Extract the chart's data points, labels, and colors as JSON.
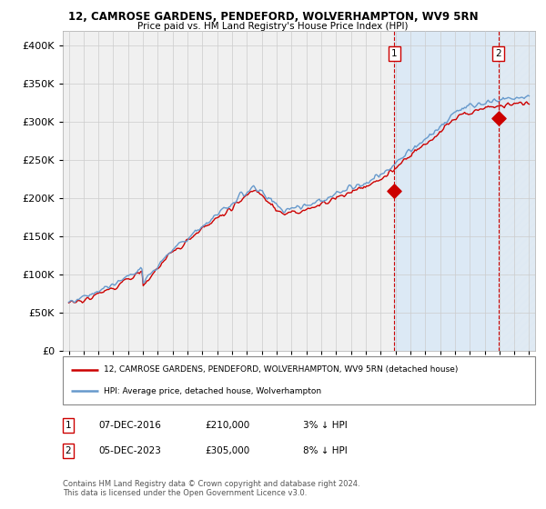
{
  "title1": "12, CAMROSE GARDENS, PENDEFORD, WOLVERHAMPTON, WV9 5RN",
  "title2": "Price paid vs. HM Land Registry's House Price Index (HPI)",
  "ytick_vals": [
    0,
    50000,
    100000,
    150000,
    200000,
    250000,
    300000,
    350000,
    400000
  ],
  "ylim": [
    0,
    420000
  ],
  "sale1_date": "07-DEC-2016",
  "sale1_price": 210000,
  "sale1_pct": "3%",
  "sale2_date": "05-DEC-2023",
  "sale2_price": 305000,
  "sale2_pct": "8%",
  "legend_label1": "12, CAMROSE GARDENS, PENDEFORD, WOLVERHAMPTON, WV9 5RN (detached house)",
  "legend_label2": "HPI: Average price, detached house, Wolverhampton",
  "footnote": "Contains HM Land Registry data © Crown copyright and database right 2024.\nThis data is licensed under the Open Government Licence v3.0.",
  "hpi_color": "#6699cc",
  "price_color": "#cc0000",
  "vline_color": "#cc0000",
  "bg_color": "#f0f0f0",
  "shade_color": "#dce9f5",
  "grid_color": "#cccccc",
  "sale1_x": 2016.92,
  "sale2_x": 2023.92,
  "xlim_left": 1994.6,
  "xlim_right": 2026.4
}
